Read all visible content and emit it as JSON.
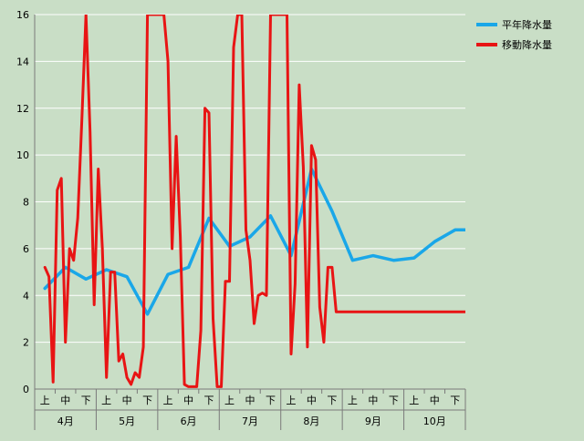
{
  "chart_data": {
    "type": "line",
    "title": "",
    "xlabel": "",
    "ylabel": "",
    "ylim": [
      0,
      16
    ],
    "yticks": [
      0,
      2,
      4,
      6,
      8,
      10,
      12,
      14,
      16
    ],
    "grid": "horizontal",
    "legend": "right",
    "groups": [
      "4月",
      "5月",
      "6月",
      "7月",
      "8月",
      "9月",
      "10月"
    ],
    "subcategories": [
      "上",
      "中",
      "下"
    ],
    "series": [
      {
        "name": "平年降水量",
        "color": "#1aa7e8",
        "x": [
          0,
          1,
          2,
          3,
          4,
          5,
          6,
          7,
          8,
          9,
          10,
          11,
          12,
          13,
          14,
          15,
          16,
          17,
          18,
          19,
          20,
          21
        ],
        "values": [
          4.3,
          5.2,
          4.7,
          5.1,
          4.8,
          3.2,
          4.9,
          5.2,
          7.3,
          6.1,
          6.5,
          7.4,
          5.7,
          9.4,
          7.6,
          5.5,
          5.7,
          5.5,
          5.6,
          6.3,
          6.8,
          6.8
        ]
      },
      {
        "name": "移動降水量",
        "color": "#e81414",
        "x": [
          0,
          0.2,
          0.4,
          0.6,
          0.8,
          1.0,
          1.2,
          1.4,
          1.6,
          1.8,
          2.0,
          2.2,
          2.4,
          2.6,
          2.8,
          3.0,
          3.2,
          3.4,
          3.6,
          3.8,
          4.0,
          4.2,
          4.4,
          4.6,
          4.8,
          5.0,
          5.2,
          5.4,
          5.6,
          5.8,
          6.0,
          6.2,
          6.4,
          6.6,
          6.8,
          7.0,
          7.2,
          7.4,
          7.6,
          7.8,
          8.0,
          8.2,
          8.4,
          8.6,
          8.8,
          9.0,
          9.2,
          9.4,
          9.6,
          9.8,
          10.0,
          10.2,
          10.4,
          10.6,
          10.8,
          11.0,
          11.2,
          11.4,
          11.6,
          11.8,
          12.0,
          12.2,
          12.4,
          12.6,
          12.8,
          13.0,
          13.2,
          13.4,
          13.6,
          13.8,
          14.0,
          14.2,
          14.4,
          14.6,
          14.8,
          15.0,
          15.2,
          15.4,
          15.6,
          15.8,
          16.0,
          16.2,
          16.4,
          16.6,
          16.8,
          17.0,
          17.2,
          17.4,
          17.6,
          17.8,
          18.0,
          18.2,
          18.4,
          18.6,
          18.8,
          19.0,
          19.2,
          19.4,
          19.6,
          19.8,
          20.0,
          20.2,
          20.4,
          20.6,
          20.8,
          21.0
        ],
        "values": [
          5.2,
          4.8,
          0.3,
          8.5,
          9.0,
          2.0,
          6.0,
          5.5,
          7.3,
          11.5,
          16.0,
          11.0,
          3.6,
          9.4,
          6.0,
          0.5,
          5.0,
          5.0,
          1.2,
          1.5,
          0.5,
          0.2,
          0.7,
          0.5,
          1.8,
          16.0,
          16.0,
          16.0,
          16.0,
          16.0,
          14.0,
          6.0,
          10.8,
          6.5,
          0.2,
          0.1,
          0.1,
          0.1,
          2.5,
          12.0,
          11.8,
          3.0,
          0.1,
          0.1,
          4.6,
          4.6,
          14.6,
          16.0,
          16.0,
          6.8,
          5.5,
          2.8,
          4.0,
          4.1,
          4.0,
          16.0,
          16.0,
          16.0,
          16.0,
          16.0,
          1.5,
          4.5,
          13.0,
          9.5,
          1.8,
          10.4,
          9.8,
          3.5,
          2.0,
          5.2,
          5.2,
          3.3,
          3.3,
          3.3,
          3.3,
          3.3,
          3.3,
          3.3,
          3.3,
          3.3,
          3.3,
          3.3,
          3.3,
          3.3,
          3.3,
          3.3,
          3.3,
          3.3,
          3.3,
          3.3,
          3.3,
          3.3,
          3.3,
          3.3,
          3.3,
          3.3,
          3.3,
          3.3,
          3.3,
          3.3,
          3.3,
          3.3,
          3.3,
          3.3,
          3.3,
          3.3
        ]
      }
    ]
  }
}
